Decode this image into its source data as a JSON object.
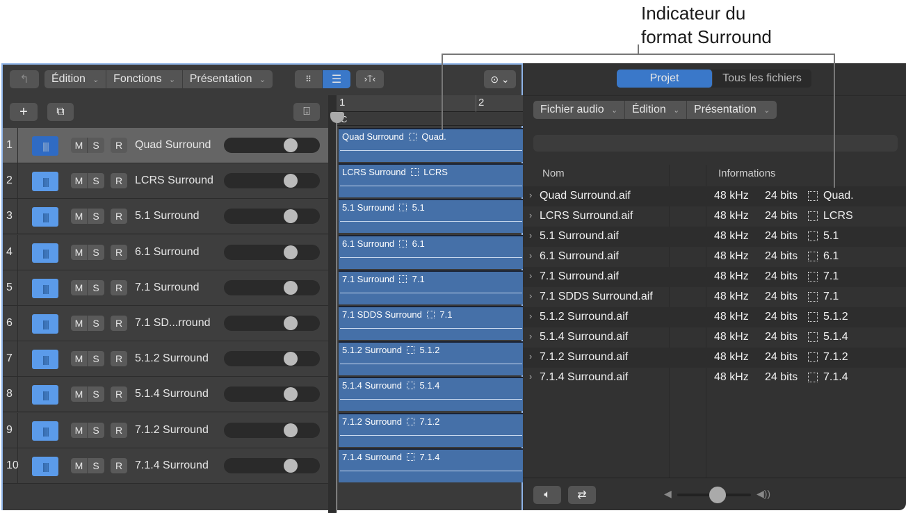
{
  "callout": {
    "line1": "Indicateur du",
    "line2": "format Surround"
  },
  "toolbar": {
    "menus": [
      "Édition",
      "Fonctions",
      "Présentation"
    ]
  },
  "ruler": {
    "bar1": "1",
    "bar2": "2",
    "marker": "C"
  },
  "tracks": [
    {
      "num": "1",
      "name": "Quad Surround",
      "region": "Quad Surround",
      "format": "Quad."
    },
    {
      "num": "2",
      "name": "LCRS Surround",
      "region": "LCRS Surround",
      "format": "LCRS"
    },
    {
      "num": "3",
      "name": "5.1 Surround",
      "region": "5.1 Surround",
      "format": "5.1"
    },
    {
      "num": "4",
      "name": "6.1 Surround",
      "region": "6.1 Surround",
      "format": "6.1"
    },
    {
      "num": "5",
      "name": "7.1 Surround",
      "region": "7.1 Surround",
      "format": "7.1"
    },
    {
      "num": "6",
      "name": "7.1 SD...rround",
      "region": "7.1 SDDS Surround",
      "format": "7.1"
    },
    {
      "num": "7",
      "name": "5.1.2 Surround",
      "region": "5.1.2 Surround",
      "format": "5.1.2"
    },
    {
      "num": "8",
      "name": "5.1.4 Surround",
      "region": "5.1.4 Surround",
      "format": "5.1.4"
    },
    {
      "num": "9",
      "name": "7.1.2 Surround",
      "region": "7.1.2 Surround",
      "format": "7.1.2"
    },
    {
      "num": "10",
      "name": "7.1.4 Surround",
      "region": "7.1.4 Surround",
      "format": "7.1.4"
    }
  ],
  "track_buttons": {
    "mute": "M",
    "solo": "S",
    "record": "R"
  },
  "browser": {
    "tabs": [
      "Projet",
      "Tous les fichiers"
    ],
    "menus": [
      "Fichier audio",
      "Édition",
      "Présentation"
    ],
    "columns": {
      "name": "Nom",
      "info": "Informations"
    },
    "files": [
      {
        "name": "Quad Surround.aif",
        "rate": "48 kHz",
        "bits": "24 bits",
        "format": "Quad."
      },
      {
        "name": "LCRS Surround.aif",
        "rate": "48 kHz",
        "bits": "24 bits",
        "format": "LCRS"
      },
      {
        "name": "5.1 Surround.aif",
        "rate": "48 kHz",
        "bits": "24 bits",
        "format": "5.1"
      },
      {
        "name": "6.1 Surround.aif",
        "rate": "48 kHz",
        "bits": "24 bits",
        "format": "6.1"
      },
      {
        "name": "7.1 Surround.aif",
        "rate": "48 kHz",
        "bits": "24 bits",
        "format": "7.1"
      },
      {
        "name": "7.1 SDDS Surround.aif",
        "rate": "48 kHz",
        "bits": "24 bits",
        "format": "7.1"
      },
      {
        "name": "5.1.2 Surround.aif",
        "rate": "48 kHz",
        "bits": "24 bits",
        "format": "5.1.2"
      },
      {
        "name": "5.1.4 Surround.aif",
        "rate": "48 kHz",
        "bits": "24 bits",
        "format": "5.1.4"
      },
      {
        "name": "7.1.2 Surround.aif",
        "rate": "48 kHz",
        "bits": "24 bits",
        "format": "7.1.2"
      },
      {
        "name": "7.1.4 Surround.aif",
        "rate": "48 kHz",
        "bits": "24 bits",
        "format": "7.1.4"
      }
    ],
    "preview_volume": 0.55
  }
}
